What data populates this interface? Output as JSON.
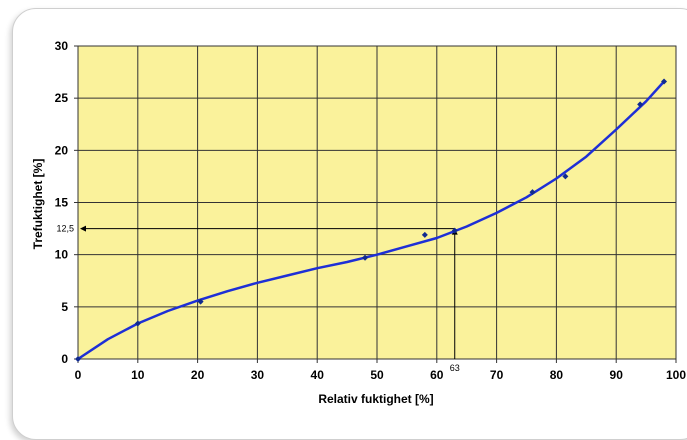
{
  "chart_data": {
    "type": "scatter",
    "xlabel": "Relativ fuktighet [%]",
    "ylabel": "Trefuktighet [%]",
    "xlim": [
      0,
      100
    ],
    "ylim": [
      0,
      30
    ],
    "x_ticks": [
      "0",
      "10",
      "20",
      "30",
      "40",
      "50",
      "60",
      "70",
      "80",
      "90",
      "100"
    ],
    "y_ticks": [
      "0",
      "5",
      "10",
      "15",
      "20",
      "25",
      "30"
    ],
    "grid": true,
    "plot_background": "#faf29b",
    "line_color": "#1e2fd6",
    "series": [
      {
        "points": [
          [
            0,
            0
          ],
          [
            10,
            3.4
          ],
          [
            20.5,
            5.5
          ],
          [
            48,
            9.7
          ],
          [
            58,
            11.9
          ],
          [
            63,
            12.3
          ],
          [
            76,
            16
          ],
          [
            81.5,
            17.5
          ],
          [
            94,
            24.4
          ],
          [
            98,
            26.6
          ]
        ],
        "fit_curve": [
          [
            0,
            0
          ],
          [
            5,
            1.9
          ],
          [
            10,
            3.4
          ],
          [
            15,
            4.6
          ],
          [
            20,
            5.6
          ],
          [
            25,
            6.5
          ],
          [
            30,
            7.3
          ],
          [
            35,
            8
          ],
          [
            40,
            8.7
          ],
          [
            45,
            9.3
          ],
          [
            50,
            10
          ],
          [
            55,
            10.8
          ],
          [
            60,
            11.6
          ],
          [
            65,
            12.7
          ],
          [
            70,
            14
          ],
          [
            75,
            15.5
          ],
          [
            80,
            17.3
          ],
          [
            85,
            19.4
          ],
          [
            90,
            22
          ],
          [
            95,
            24.7
          ],
          [
            98,
            26.6
          ]
        ]
      }
    ],
    "annotations": {
      "x_marker": {
        "value": 63,
        "label": "63"
      },
      "y_marker": {
        "value": 12.5,
        "label": "12,5"
      }
    }
  }
}
